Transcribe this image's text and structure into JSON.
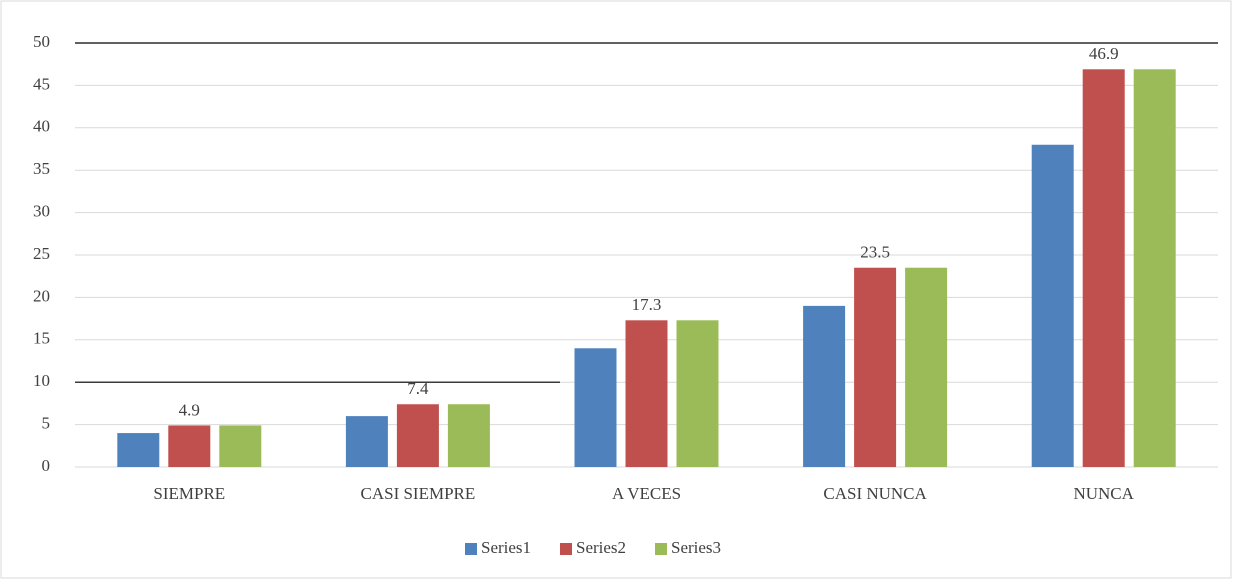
{
  "chart_data": {
    "type": "bar",
    "categories": [
      "SIEMPRE",
      "CASI SIEMPRE",
      "A VECES",
      "CASI NUNCA",
      "NUNCA"
    ],
    "series": [
      {
        "name": "Series1",
        "color": "#4f81bd",
        "values": [
          4,
          6,
          14,
          19,
          38
        ]
      },
      {
        "name": "Series2",
        "color": "#c0504d",
        "values": [
          4.9,
          7.4,
          17.3,
          23.5,
          46.9
        ],
        "show_labels": true
      },
      {
        "name": "Series3",
        "color": "#9bbb59",
        "values": [
          4.9,
          7.4,
          17.3,
          23.5,
          46.9
        ]
      }
    ],
    "ylim": [
      0,
      50
    ],
    "yticks": [
      0,
      5,
      10,
      15,
      20,
      25,
      30,
      35,
      40,
      45,
      50
    ],
    "grid": true,
    "reference_lines": [
      50,
      10
    ],
    "legend": "bottom"
  }
}
